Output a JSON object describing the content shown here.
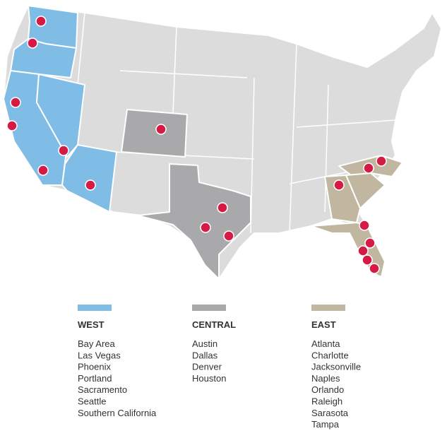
{
  "legend": [
    {
      "name": "WEST",
      "color": "#80bde6",
      "cities": [
        "Bay Area",
        "Las Vegas",
        "Phoenix",
        "Portland",
        "Sacramento",
        "Seattle",
        "Southern California"
      ]
    },
    {
      "name": "CENTRAL",
      "color": "#a9a9ab",
      "cities": [
        "Austin",
        "Dallas",
        "Denver",
        "Houston"
      ]
    },
    {
      "name": "EAST",
      "color": "#c1b7a1",
      "cities": [
        "Atlanta",
        "Charlotte",
        "Jacksonville",
        "Naples",
        "Orlando",
        "Raleigh",
        "Sarasota",
        "Tampa"
      ]
    }
  ]
}
